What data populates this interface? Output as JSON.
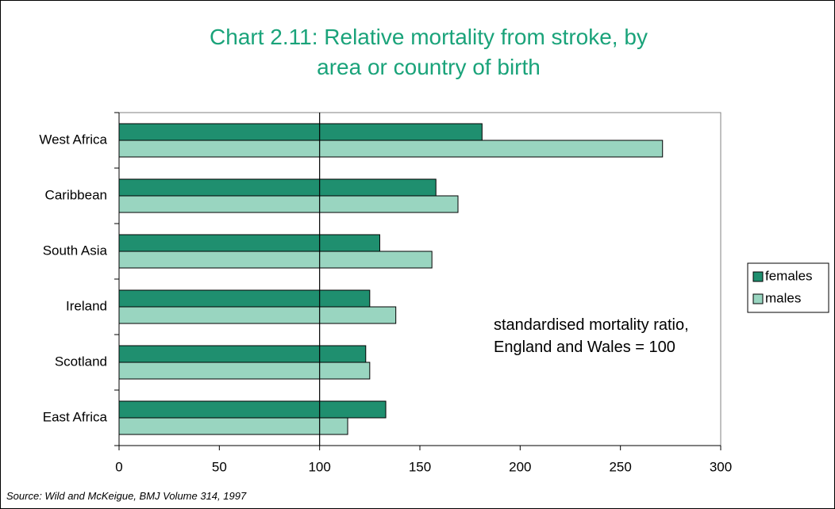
{
  "chart_data": {
    "type": "hbar",
    "title": "Chart 2.11: Relative mortality from stroke, by area or country of birth",
    "annotation": "standardised mortality ratio, England and Wales = 100",
    "source": "Source:  Wild and McKeigue, BMJ Volume 314, 1997",
    "categories": [
      "West Africa",
      "Caribbean",
      "South Asia",
      "Ireland",
      "Scotland",
      "East Africa"
    ],
    "series": [
      {
        "name": "females",
        "color": "#1f8f6f",
        "values": [
          181,
          158,
          130,
          125,
          123,
          133
        ]
      },
      {
        "name": "males",
        "color": "#99d5c0",
        "values": [
          271,
          169,
          156,
          138,
          125,
          114
        ]
      }
    ],
    "reference_x": 100,
    "xlim": [
      0,
      300
    ],
    "xticks": [
      0,
      50,
      100,
      150,
      200,
      250,
      300
    ],
    "legend": "right"
  }
}
